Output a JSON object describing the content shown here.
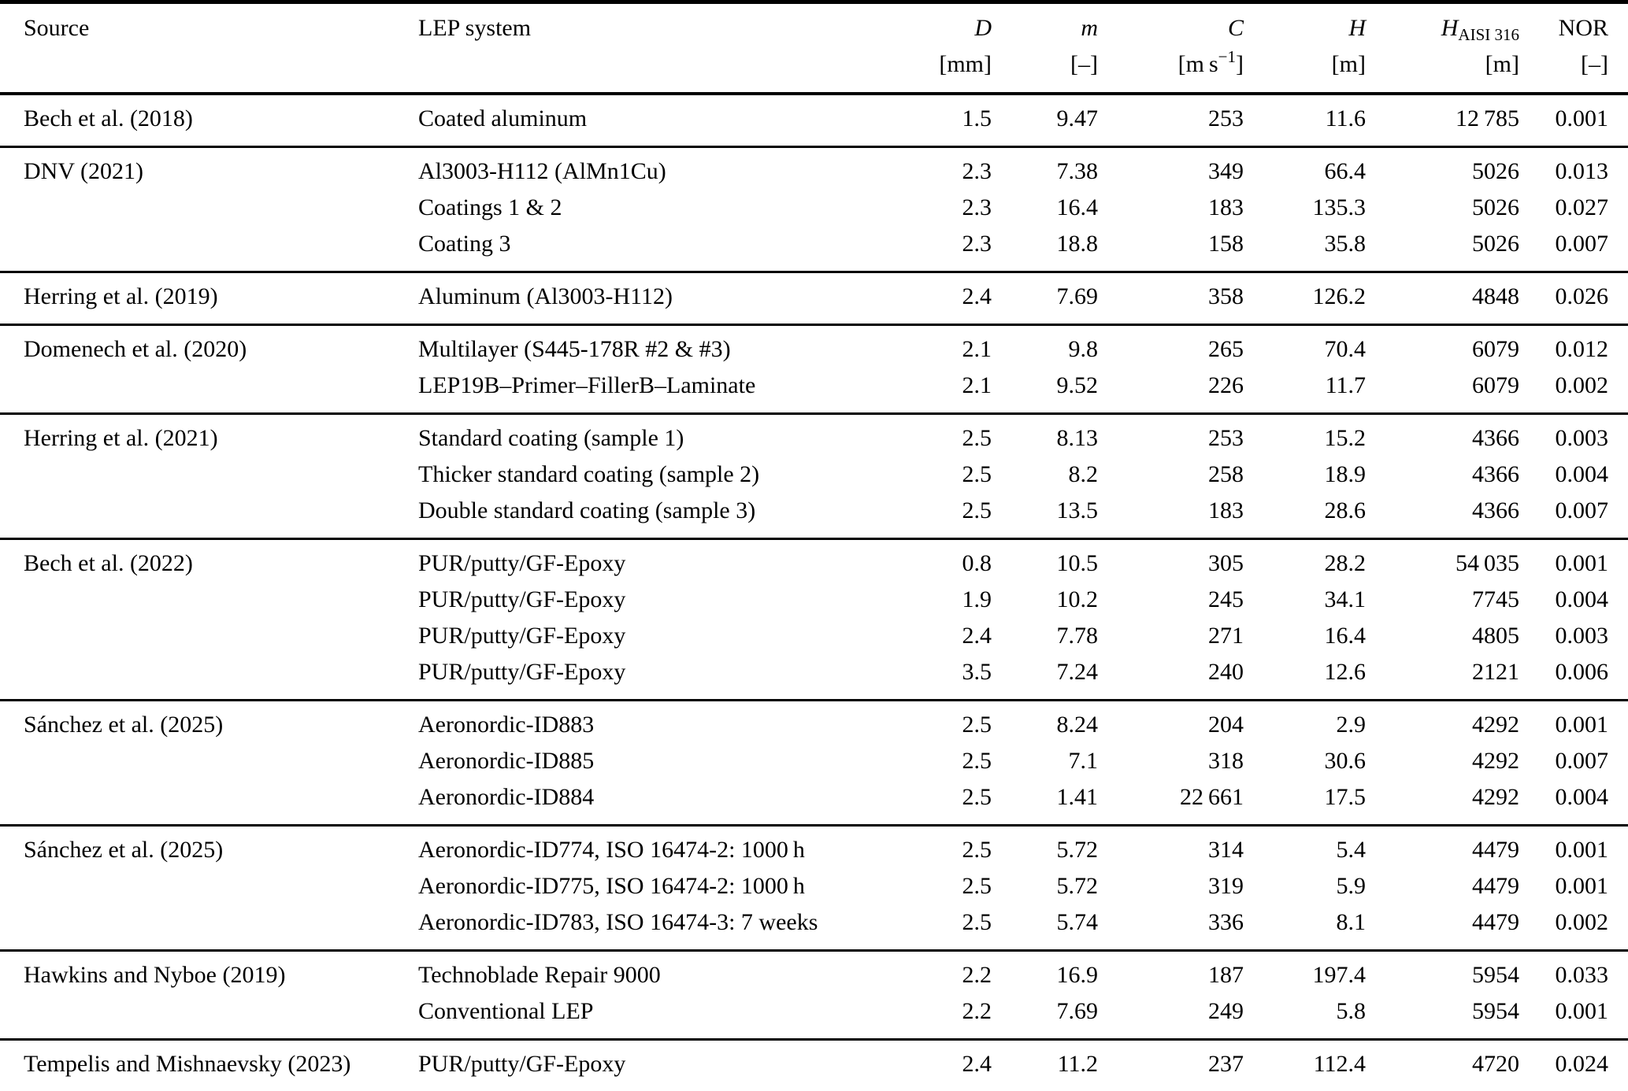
{
  "table": {
    "header": {
      "source": "Source",
      "lep_system": "LEP system"
    },
    "columns": [
      {
        "symbol": "D",
        "subscript": "",
        "unit_pre": "[mm]",
        "unit_sup": "",
        "unit_post": ""
      },
      {
        "symbol": "m",
        "subscript": "",
        "unit_pre": "[–]",
        "unit_sup": "",
        "unit_post": ""
      },
      {
        "symbol": "C",
        "subscript": "",
        "unit_pre": "[m s",
        "unit_sup": "−1",
        "unit_post": "]"
      },
      {
        "symbol": "H",
        "subscript": "",
        "unit_pre": "[m]",
        "unit_sup": "",
        "unit_post": ""
      },
      {
        "symbol": "H",
        "subscript": "AISI 316",
        "unit_pre": "[m]",
        "unit_sup": "",
        "unit_post": ""
      },
      {
        "symbol": "NOR",
        "subscript": "",
        "unit_pre": "[–]",
        "unit_sup": "",
        "unit_post": ""
      }
    ],
    "groups": [
      {
        "source": "Bech et al. (2018)",
        "rows": [
          {
            "system": "Coated aluminum",
            "values": [
              "1.5",
              "9.47",
              "253",
              "11.6",
              "12 785",
              "0.001"
            ]
          }
        ]
      },
      {
        "source": "DNV (2021)",
        "rows": [
          {
            "system": "Al3003-H112 (AlMn1Cu)",
            "values": [
              "2.3",
              "7.38",
              "349",
              "66.4",
              "5026",
              "0.013"
            ]
          },
          {
            "system": "Coatings 1 & 2",
            "values": [
              "2.3",
              "16.4",
              "183",
              "135.3",
              "5026",
              "0.027"
            ]
          },
          {
            "system": "Coating 3",
            "values": [
              "2.3",
              "18.8",
              "158",
              "35.8",
              "5026",
              "0.007"
            ]
          }
        ]
      },
      {
        "source": "Herring et al. (2019)",
        "rows": [
          {
            "system": "Aluminum (Al3003-H112)",
            "values": [
              "2.4",
              "7.69",
              "358",
              "126.2",
              "4848",
              "0.026"
            ]
          }
        ]
      },
      {
        "source": "Domenech et al. (2020)",
        "rows": [
          {
            "system": "Multilayer (S445-178R #2 & #3)",
            "values": [
              "2.1",
              "9.8",
              "265",
              "70.4",
              "6079",
              "0.012"
            ]
          },
          {
            "system": "LEP19B–Primer–FillerB–Laminate",
            "values": [
              "2.1",
              "9.52",
              "226",
              "11.7",
              "6079",
              "0.002"
            ]
          }
        ]
      },
      {
        "source": "Herring et al. (2021)",
        "rows": [
          {
            "system": "Standard coating (sample 1)",
            "values": [
              "2.5",
              "8.13",
              "253",
              "15.2",
              "4366",
              "0.003"
            ]
          },
          {
            "system": "Thicker standard coating (sample 2)",
            "values": [
              "2.5",
              "8.2",
              "258",
              "18.9",
              "4366",
              "0.004"
            ]
          },
          {
            "system": "Double standard coating (sample 3)",
            "values": [
              "2.5",
              "13.5",
              "183",
              "28.6",
              "4366",
              "0.007"
            ]
          }
        ]
      },
      {
        "source": "Bech et al. (2022)",
        "rows": [
          {
            "system": "PUR/putty/GF-Epoxy",
            "values": [
              "0.8",
              "10.5",
              "305",
              "28.2",
              "54 035",
              "0.001"
            ]
          },
          {
            "system": "PUR/putty/GF-Epoxy",
            "values": [
              "1.9",
              "10.2",
              "245",
              "34.1",
              "7745",
              "0.004"
            ]
          },
          {
            "system": "PUR/putty/GF-Epoxy",
            "values": [
              "2.4",
              "7.78",
              "271",
              "16.4",
              "4805",
              "0.003"
            ]
          },
          {
            "system": "PUR/putty/GF-Epoxy",
            "values": [
              "3.5",
              "7.24",
              "240",
              "12.6",
              "2121",
              "0.006"
            ]
          }
        ]
      },
      {
        "source": "Sánchez et al. (2025)",
        "rows": [
          {
            "system": "Aeronordic-ID883",
            "values": [
              "2.5",
              "8.24",
              "204",
              "2.9",
              "4292",
              "0.001"
            ]
          },
          {
            "system": "Aeronordic-ID885",
            "values": [
              "2.5",
              "7.1",
              "318",
              "30.6",
              "4292",
              "0.007"
            ]
          },
          {
            "system": "Aeronordic-ID884",
            "values": [
              "2.5",
              "1.41",
              "22 661",
              "17.5",
              "4292",
              "0.004"
            ]
          }
        ]
      },
      {
        "source": "Sánchez et al. (2025)",
        "rows": [
          {
            "system": "Aeronordic-ID774, ISO 16474-2: 1000 h",
            "values": [
              "2.5",
              "5.72",
              "314",
              "5.4",
              "4479",
              "0.001"
            ]
          },
          {
            "system": "Aeronordic-ID775, ISO 16474-2: 1000 h",
            "values": [
              "2.5",
              "5.72",
              "319",
              "5.9",
              "4479",
              "0.001"
            ]
          },
          {
            "system": "Aeronordic-ID783, ISO 16474-3: 7 weeks",
            "values": [
              "2.5",
              "5.74",
              "336",
              "8.1",
              "4479",
              "0.002"
            ]
          }
        ]
      },
      {
        "source": "Hawkins and Nyboe (2019)",
        "rows": [
          {
            "system": "Technoblade Repair 9000",
            "values": [
              "2.2",
              "16.9",
              "187",
              "197.4",
              "5954",
              "0.033"
            ]
          },
          {
            "system": "Conventional LEP",
            "values": [
              "2.2",
              "7.69",
              "249",
              "5.8",
              "5954",
              "0.001"
            ]
          }
        ]
      },
      {
        "source": "Tempelis and Mishnaevsky (2023)",
        "rows": [
          {
            "system": "PUR/putty/GF-Epoxy",
            "values": [
              "2.4",
              "11.2",
              "237",
              "112.4",
              "4720",
              "0.024"
            ]
          }
        ]
      }
    ]
  }
}
